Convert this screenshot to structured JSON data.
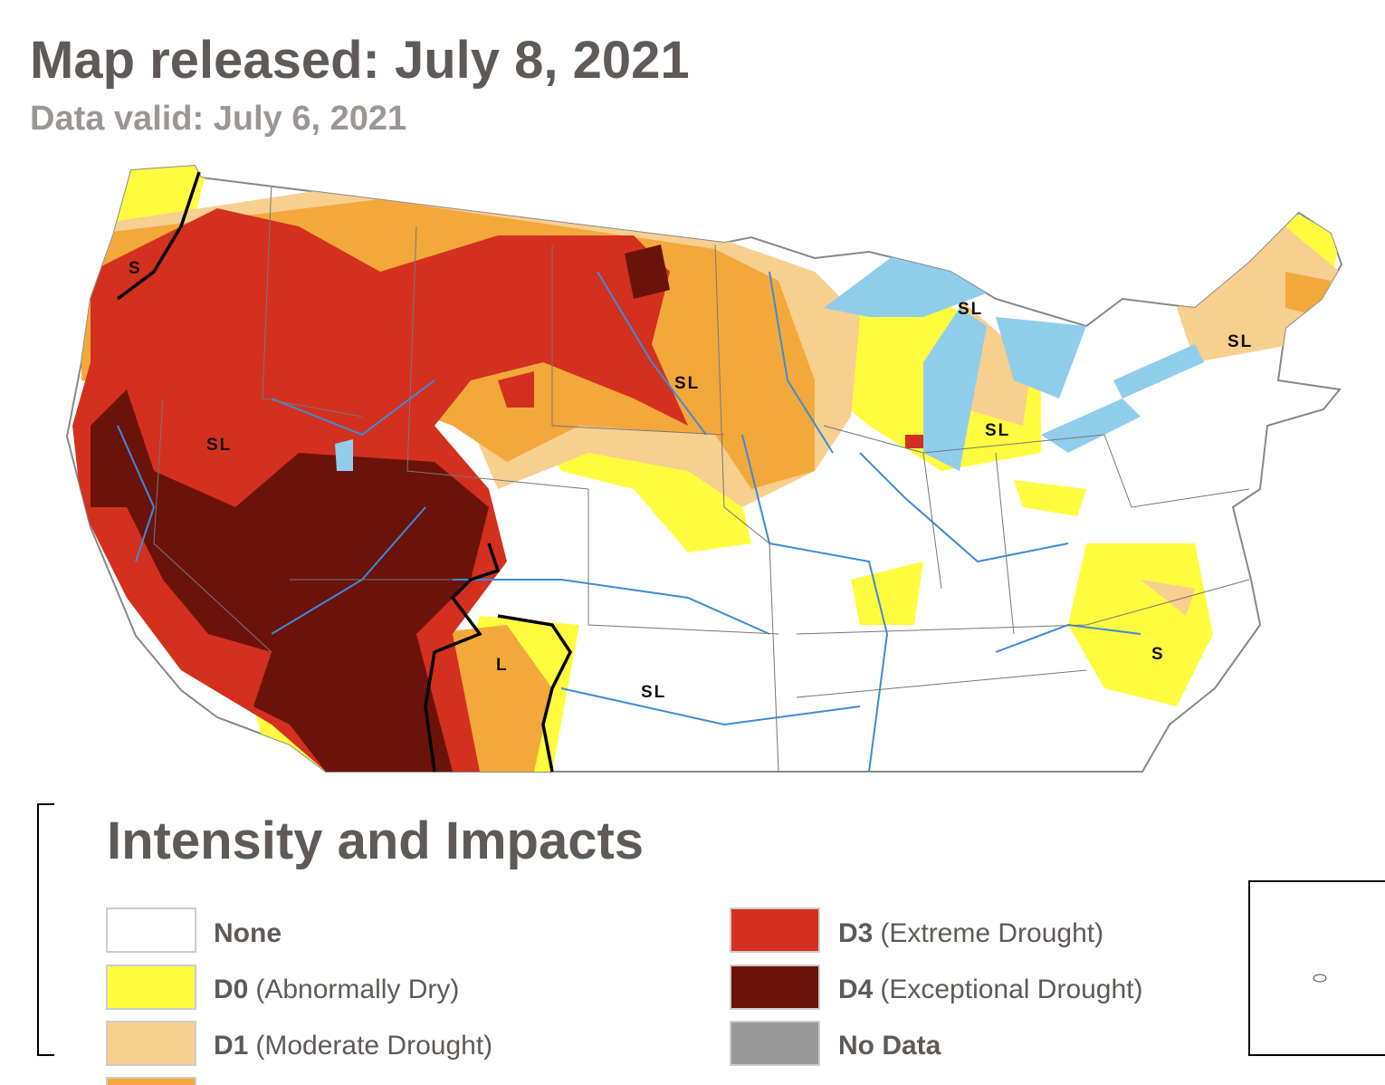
{
  "header": {
    "title": "Map released: July 8, 2021",
    "subtitle": "Data valid: July 6, 2021"
  },
  "map": {
    "labels": [
      "S",
      "SL",
      "SL",
      "SL",
      "SL",
      "SL",
      "SL",
      "S",
      "L"
    ]
  },
  "legend": {
    "heading": "Intensity and Impacts",
    "items": [
      {
        "code": "None"
      },
      {
        "code": "D0",
        "desc": "(Abnormally Dry)"
      },
      {
        "code": "D1",
        "desc": "(Moderate Drought)"
      },
      {
        "code": "D3",
        "desc": "(Extreme Drought)"
      },
      {
        "code": "D4",
        "desc": "(Exceptional Drought)"
      },
      {
        "code": "No Data"
      }
    ]
  }
}
